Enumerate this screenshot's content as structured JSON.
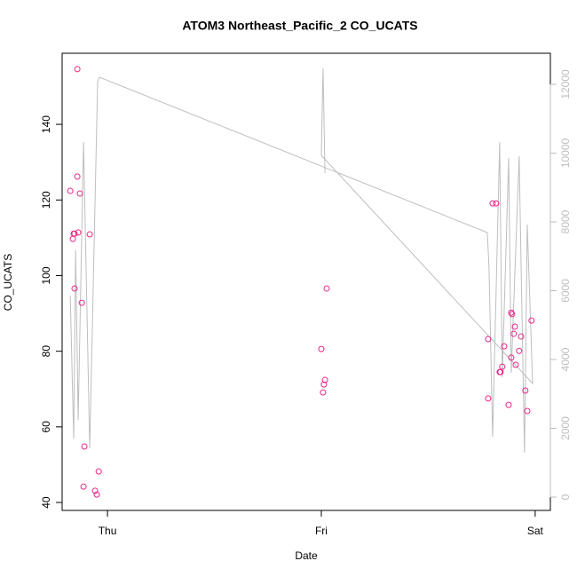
{
  "chart_data": {
    "type": "scatter",
    "title": "ATOM3 Northeast_Pacific_2 CO_UCATS",
    "xlabel": "Date",
    "ylabel": "CO_UCATS",
    "xlim": [
      -0.212,
      2.071
    ],
    "xticks": [
      {
        "value": 0,
        "label": "Thu"
      },
      {
        "value": 1,
        "label": "Fri"
      },
      {
        "value": 2,
        "label": "Sat"
      }
    ],
    "ylim": [
      37.9,
      158.8
    ],
    "yticks": [
      40,
      60,
      80,
      100,
      120,
      140
    ],
    "y2lim": [
      -387,
      12903
    ],
    "y2ticks": [
      0,
      2000,
      4000,
      6000,
      8000,
      10000,
      12000
    ],
    "y2color": "#bebebe",
    "grid": false,
    "series": [
      {
        "type": "scatter",
        "color": "#e7298a",
        "x": [
          -0.174,
          -0.162,
          -0.158,
          -0.154,
          -0.154,
          -0.141,
          -0.141,
          -0.137,
          -0.129,
          -0.12,
          -0.112,
          -0.108,
          -0.083,
          -0.058,
          -0.05,
          -0.041,
          1.0,
          1.008,
          1.012,
          1.017,
          1.025,
          1.78,
          1.78,
          1.801,
          1.817,
          1.834,
          1.838,
          1.846,
          1.855,
          1.876,
          1.888,
          1.888,
          1.892,
          1.9,
          1.905,
          1.909,
          1.925,
          1.934,
          1.954,
          1.963,
          1.983
        ],
        "values": [
          122.4,
          109.7,
          111.1,
          111.1,
          96.6,
          154.6,
          126.2,
          111.4,
          121.7,
          92.8,
          44.2,
          54.8,
          110.9,
          43.1,
          42.1,
          48.2,
          80.6,
          69.1,
          71.2,
          72.4,
          96.6,
          67.5,
          83.2,
          119.1,
          119.1,
          74.5,
          74.5,
          75.9,
          81.3,
          65.8,
          78.3,
          90.2,
          89.8,
          84.6,
          86.5,
          76.4,
          80.1,
          83.9,
          69.6,
          64.2,
          88.1
        ]
      },
      {
        "type": "line",
        "color": "#bebebe",
        "axis": "y2",
        "x": [
          -0.174,
          -0.158,
          -0.149,
          -0.137,
          -0.112,
          -0.083,
          -0.054,
          -0.046,
          -0.037,
          1.776,
          1.784,
          1.801,
          1.834,
          1.846,
          1.876,
          1.888,
          1.925,
          1.95,
          1.963,
          1.988,
          1.0,
          1.008,
          1.017
        ],
        "values": [
          5858,
          1703,
          7174,
          2245,
          10323,
          1419,
          9755,
          12077,
          12206,
          7690,
          6710,
          1755,
          10323,
          3484,
          9858,
          3613,
          9910,
          1290,
          7923,
          3303,
          9935,
          12465,
          9419
        ]
      }
    ]
  }
}
